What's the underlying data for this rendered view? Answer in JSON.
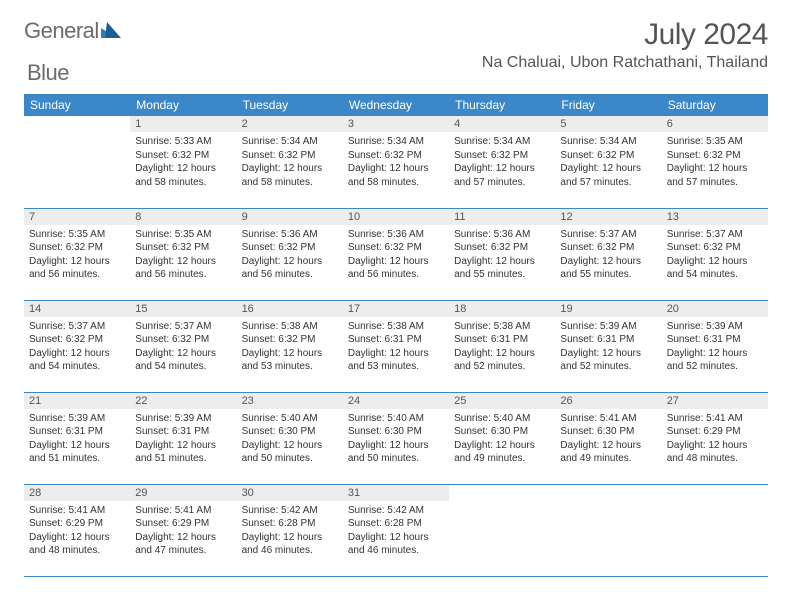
{
  "brand": {
    "part1": "General",
    "part2": "Blue"
  },
  "title": "July 2024",
  "location": "Na Chaluai, Ubon Ratchathani, Thailand",
  "colors": {
    "header_bg": "#3b87c8",
    "header_text": "#ffffff",
    "daynum_bg": "#ededed",
    "border": "#3b87c8",
    "text": "#333333",
    "muted": "#555555"
  },
  "typography": {
    "title_fontsize": 30,
    "location_fontsize": 16,
    "dow_fontsize": 12,
    "cell_fontsize": 10
  },
  "weekdays": [
    "Sunday",
    "Monday",
    "Tuesday",
    "Wednesday",
    "Thursday",
    "Friday",
    "Saturday"
  ],
  "weeks": [
    [
      {
        "num": "",
        "sunrise": "",
        "sunset": "",
        "daylight": ""
      },
      {
        "num": "1",
        "sunrise": "Sunrise: 5:33 AM",
        "sunset": "Sunset: 6:32 PM",
        "daylight": "Daylight: 12 hours and 58 minutes."
      },
      {
        "num": "2",
        "sunrise": "Sunrise: 5:34 AM",
        "sunset": "Sunset: 6:32 PM",
        "daylight": "Daylight: 12 hours and 58 minutes."
      },
      {
        "num": "3",
        "sunrise": "Sunrise: 5:34 AM",
        "sunset": "Sunset: 6:32 PM",
        "daylight": "Daylight: 12 hours and 58 minutes."
      },
      {
        "num": "4",
        "sunrise": "Sunrise: 5:34 AM",
        "sunset": "Sunset: 6:32 PM",
        "daylight": "Daylight: 12 hours and 57 minutes."
      },
      {
        "num": "5",
        "sunrise": "Sunrise: 5:34 AM",
        "sunset": "Sunset: 6:32 PM",
        "daylight": "Daylight: 12 hours and 57 minutes."
      },
      {
        "num": "6",
        "sunrise": "Sunrise: 5:35 AM",
        "sunset": "Sunset: 6:32 PM",
        "daylight": "Daylight: 12 hours and 57 minutes."
      }
    ],
    [
      {
        "num": "7",
        "sunrise": "Sunrise: 5:35 AM",
        "sunset": "Sunset: 6:32 PM",
        "daylight": "Daylight: 12 hours and 56 minutes."
      },
      {
        "num": "8",
        "sunrise": "Sunrise: 5:35 AM",
        "sunset": "Sunset: 6:32 PM",
        "daylight": "Daylight: 12 hours and 56 minutes."
      },
      {
        "num": "9",
        "sunrise": "Sunrise: 5:36 AM",
        "sunset": "Sunset: 6:32 PM",
        "daylight": "Daylight: 12 hours and 56 minutes."
      },
      {
        "num": "10",
        "sunrise": "Sunrise: 5:36 AM",
        "sunset": "Sunset: 6:32 PM",
        "daylight": "Daylight: 12 hours and 56 minutes."
      },
      {
        "num": "11",
        "sunrise": "Sunrise: 5:36 AM",
        "sunset": "Sunset: 6:32 PM",
        "daylight": "Daylight: 12 hours and 55 minutes."
      },
      {
        "num": "12",
        "sunrise": "Sunrise: 5:37 AM",
        "sunset": "Sunset: 6:32 PM",
        "daylight": "Daylight: 12 hours and 55 minutes."
      },
      {
        "num": "13",
        "sunrise": "Sunrise: 5:37 AM",
        "sunset": "Sunset: 6:32 PM",
        "daylight": "Daylight: 12 hours and 54 minutes."
      }
    ],
    [
      {
        "num": "14",
        "sunrise": "Sunrise: 5:37 AM",
        "sunset": "Sunset: 6:32 PM",
        "daylight": "Daylight: 12 hours and 54 minutes."
      },
      {
        "num": "15",
        "sunrise": "Sunrise: 5:37 AM",
        "sunset": "Sunset: 6:32 PM",
        "daylight": "Daylight: 12 hours and 54 minutes."
      },
      {
        "num": "16",
        "sunrise": "Sunrise: 5:38 AM",
        "sunset": "Sunset: 6:32 PM",
        "daylight": "Daylight: 12 hours and 53 minutes."
      },
      {
        "num": "17",
        "sunrise": "Sunrise: 5:38 AM",
        "sunset": "Sunset: 6:31 PM",
        "daylight": "Daylight: 12 hours and 53 minutes."
      },
      {
        "num": "18",
        "sunrise": "Sunrise: 5:38 AM",
        "sunset": "Sunset: 6:31 PM",
        "daylight": "Daylight: 12 hours and 52 minutes."
      },
      {
        "num": "19",
        "sunrise": "Sunrise: 5:39 AM",
        "sunset": "Sunset: 6:31 PM",
        "daylight": "Daylight: 12 hours and 52 minutes."
      },
      {
        "num": "20",
        "sunrise": "Sunrise: 5:39 AM",
        "sunset": "Sunset: 6:31 PM",
        "daylight": "Daylight: 12 hours and 52 minutes."
      }
    ],
    [
      {
        "num": "21",
        "sunrise": "Sunrise: 5:39 AM",
        "sunset": "Sunset: 6:31 PM",
        "daylight": "Daylight: 12 hours and 51 minutes."
      },
      {
        "num": "22",
        "sunrise": "Sunrise: 5:39 AM",
        "sunset": "Sunset: 6:31 PM",
        "daylight": "Daylight: 12 hours and 51 minutes."
      },
      {
        "num": "23",
        "sunrise": "Sunrise: 5:40 AM",
        "sunset": "Sunset: 6:30 PM",
        "daylight": "Daylight: 12 hours and 50 minutes."
      },
      {
        "num": "24",
        "sunrise": "Sunrise: 5:40 AM",
        "sunset": "Sunset: 6:30 PM",
        "daylight": "Daylight: 12 hours and 50 minutes."
      },
      {
        "num": "25",
        "sunrise": "Sunrise: 5:40 AM",
        "sunset": "Sunset: 6:30 PM",
        "daylight": "Daylight: 12 hours and 49 minutes."
      },
      {
        "num": "26",
        "sunrise": "Sunrise: 5:41 AM",
        "sunset": "Sunset: 6:30 PM",
        "daylight": "Daylight: 12 hours and 49 minutes."
      },
      {
        "num": "27",
        "sunrise": "Sunrise: 5:41 AM",
        "sunset": "Sunset: 6:29 PM",
        "daylight": "Daylight: 12 hours and 48 minutes."
      }
    ],
    [
      {
        "num": "28",
        "sunrise": "Sunrise: 5:41 AM",
        "sunset": "Sunset: 6:29 PM",
        "daylight": "Daylight: 12 hours and 48 minutes."
      },
      {
        "num": "29",
        "sunrise": "Sunrise: 5:41 AM",
        "sunset": "Sunset: 6:29 PM",
        "daylight": "Daylight: 12 hours and 47 minutes."
      },
      {
        "num": "30",
        "sunrise": "Sunrise: 5:42 AM",
        "sunset": "Sunset: 6:28 PM",
        "daylight": "Daylight: 12 hours and 46 minutes."
      },
      {
        "num": "31",
        "sunrise": "Sunrise: 5:42 AM",
        "sunset": "Sunset: 6:28 PM",
        "daylight": "Daylight: 12 hours and 46 minutes."
      },
      {
        "num": "",
        "sunrise": "",
        "sunset": "",
        "daylight": ""
      },
      {
        "num": "",
        "sunrise": "",
        "sunset": "",
        "daylight": ""
      },
      {
        "num": "",
        "sunrise": "",
        "sunset": "",
        "daylight": ""
      }
    ]
  ]
}
